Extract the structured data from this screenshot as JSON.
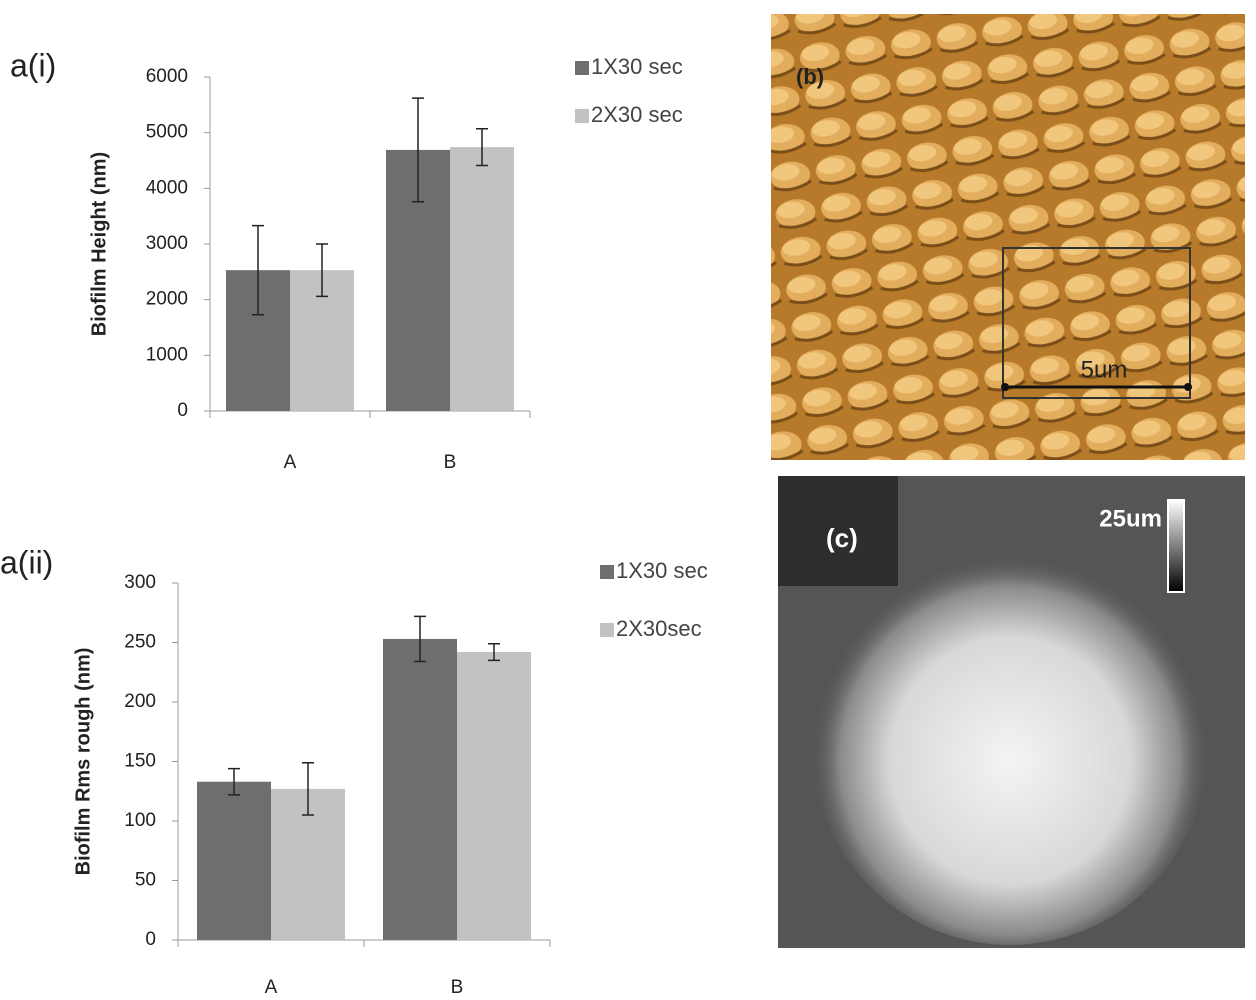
{
  "chart_data": [
    {
      "type": "bar",
      "title": "a(i)",
      "ylabel": "Biofilm Height (nm)",
      "categories": [
        "A",
        "B"
      ],
      "series": [
        {
          "name": "1X30 sec",
          "color": "#6e6e6e",
          "values": [
            2530,
            4690
          ],
          "errors": [
            800,
            930
          ]
        },
        {
          "name": "2X30 sec",
          "color": "#c2c2c2",
          "values": [
            2530,
            4740
          ],
          "errors": [
            470,
            330
          ]
        }
      ],
      "ylim": [
        0,
        6000
      ],
      "yticks": [
        0,
        1000,
        2000,
        3000,
        4000,
        5000,
        6000
      ]
    },
    {
      "type": "bar",
      "title": "a(ii)",
      "ylabel": "Biofilm Rms rough (nm)",
      "categories": [
        "A",
        "B"
      ],
      "series": [
        {
          "name": "1X30 sec",
          "color": "#6e6e6e",
          "values": [
            133,
            253
          ],
          "errors": [
            11,
            19
          ]
        },
        {
          "name": "2X30sec",
          "color": "#c2c2c2",
          "values": [
            127,
            242
          ],
          "errors": [
            22,
            7
          ]
        }
      ],
      "ylim": [
        0,
        300
      ],
      "yticks": [
        0,
        50,
        100,
        150,
        200,
        250,
        300
      ]
    }
  ],
  "panels": {
    "b": {
      "label": "(b)",
      "scale": "5um"
    },
    "c": {
      "label": "(c)",
      "scale": "25um"
    }
  }
}
